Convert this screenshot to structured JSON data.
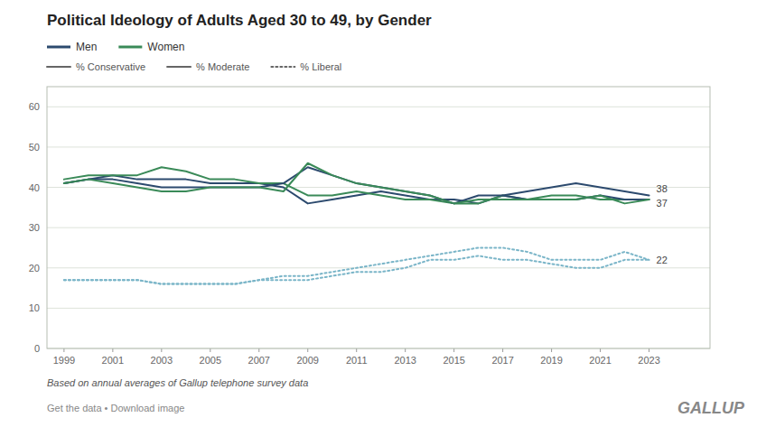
{
  "chart_data": {
    "type": "line",
    "title": "Political Ideology of Adults Aged 30 to 49, by Gender",
    "x": [
      1999,
      2000,
      2001,
      2002,
      2003,
      2004,
      2005,
      2006,
      2007,
      2008,
      2009,
      2010,
      2011,
      2012,
      2013,
      2014,
      2015,
      2016,
      2017,
      2018,
      2019,
      2020,
      2021,
      2022,
      2023
    ],
    "series": [
      {
        "color": "#2c4a6e",
        "line_style": "solid",
        "values": [
          41,
          42,
          43,
          42,
          42,
          42,
          41,
          41,
          41,
          40,
          36,
          37,
          38,
          39,
          38,
          37,
          37,
          36,
          38,
          39,
          40,
          41,
          40,
          39,
          38
        ]
      },
      {
        "color": "#3a8a58",
        "line_style": "solid",
        "values": [
          42,
          43,
          43,
          43,
          45,
          44,
          42,
          42,
          41,
          41,
          38,
          38,
          39,
          38,
          37,
          37,
          36,
          36,
          38,
          37,
          38,
          38,
          37,
          37,
          37
        ]
      },
      {
        "color": "#2c4a6e",
        "line_style": "solid",
        "values": [
          41,
          42,
          42,
          41,
          40,
          40,
          40,
          40,
          40,
          41,
          45,
          43,
          41,
          40,
          39,
          38,
          36,
          38,
          38,
          37,
          37,
          37,
          38,
          37,
          37
        ]
      },
      {
        "color": "#3a8a58",
        "line_style": "solid",
        "values": [
          41,
          42,
          41,
          40,
          39,
          39,
          40,
          40,
          40,
          39,
          46,
          43,
          41,
          40,
          39,
          38,
          36,
          37,
          37,
          37,
          37,
          37,
          38,
          36,
          37
        ]
      },
      {
        "color": "#7ab5c8",
        "line_style": "dotted",
        "values": [
          17,
          17,
          17,
          17,
          16,
          16,
          16,
          16,
          17,
          17,
          17,
          18,
          19,
          19,
          20,
          22,
          22,
          23,
          22,
          22,
          21,
          20,
          20,
          22,
          22
        ]
      },
      {
        "color": "#7ab5c8",
        "line_style": "dotted",
        "values": [
          17,
          17,
          17,
          17,
          16,
          16,
          16,
          16,
          17,
          18,
          18,
          19,
          20,
          21,
          22,
          23,
          24,
          25,
          25,
          24,
          22,
          22,
          22,
          24,
          22
        ]
      }
    ],
    "end_labels": [
      38,
      37,
      22
    ],
    "annotations": [
      "Men",
      "Women",
      "% Conservative",
      "% Moderate",
      "% Liberal"
    ],
    "footnote": "Based on annual averages of Gallup telephone survey data",
    "source_links": "Get the data • Download image",
    "source": "GALLUP",
    "xlim": [
      1998.3,
      2025.5
    ],
    "xticks": [
      1999,
      2001,
      2003,
      2005,
      2007,
      2009,
      2011,
      2013,
      2015,
      2017,
      2019,
      2021,
      2023
    ],
    "ylim": [
      0,
      65
    ],
    "yticks": [
      0,
      10,
      20,
      30,
      40,
      50,
      60
    ],
    "grid": true
  }
}
